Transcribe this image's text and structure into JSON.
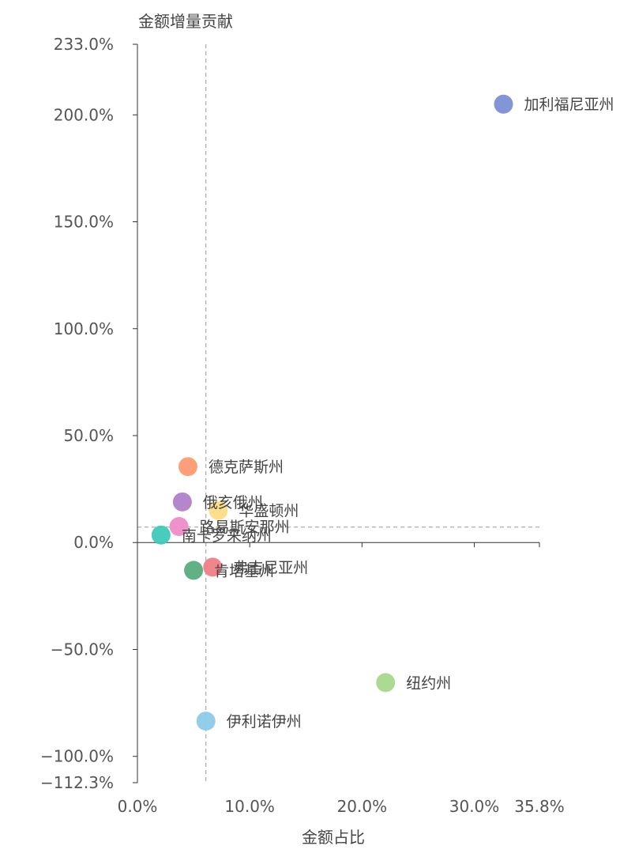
{
  "chart_data": {
    "type": "scatter",
    "xlabel": "金额占比",
    "ylabel": "金额增量贡献",
    "xlim": [
      0,
      35.8
    ],
    "ylim": [
      -112.3,
      233.0
    ],
    "x_ticks": [
      {
        "value": 0,
        "label": "0.0%"
      },
      {
        "value": 10,
        "label": "10.0%"
      },
      {
        "value": 20,
        "label": "20.0%"
      },
      {
        "value": 30,
        "label": "30.0%"
      },
      {
        "value": 35.8,
        "label": "35.8%"
      }
    ],
    "y_ticks": [
      {
        "value": 233.0,
        "label": "233.0%"
      },
      {
        "value": 200,
        "label": "200.0%"
      },
      {
        "value": 150,
        "label": "150.0%"
      },
      {
        "value": 100,
        "label": "100.0%"
      },
      {
        "value": 50,
        "label": "50.0%"
      },
      {
        "value": 0,
        "label": "0.0%"
      },
      {
        "value": -50,
        "label": "−50.0%"
      },
      {
        "value": -100,
        "label": "−100.0%"
      },
      {
        "value": -112.3,
        "label": "−112.3%"
      }
    ],
    "reference_lines": {
      "x": 6.1,
      "y": 7.2
    },
    "points": [
      {
        "label": "加利福尼亚州",
        "x": 32.6,
        "y": 205.0,
        "color": "#7b8fd4"
      },
      {
        "label": "德克萨斯州",
        "x": 4.5,
        "y": 35.5,
        "color": "#fd9b72"
      },
      {
        "label": "俄亥俄州",
        "x": 4.0,
        "y": 19.0,
        "color": "#b07fc8"
      },
      {
        "label": "华盛顿州",
        "x": 7.2,
        "y": 15.0,
        "color": "#ffdc85"
      },
      {
        "label": "路易斯安那州",
        "x": 3.7,
        "y": 7.5,
        "color": "#ee8bc8"
      },
      {
        "label": "南卡罗来纳州",
        "x": 2.1,
        "y": 3.5,
        "color": "#3ec9b8"
      },
      {
        "label": "弗吉尼亚州",
        "x": 6.7,
        "y": -11.5,
        "color": "#ef8086"
      },
      {
        "label": "肯塔基州",
        "x": 5.0,
        "y": -13.0,
        "color": "#5aad7f"
      },
      {
        "label": "纽约州",
        "x": 22.1,
        "y": -65.5,
        "color": "#a8d88c"
      },
      {
        "label": "伊利诺伊州",
        "x": 6.1,
        "y": -83.5,
        "color": "#8ccbe8"
      }
    ]
  }
}
